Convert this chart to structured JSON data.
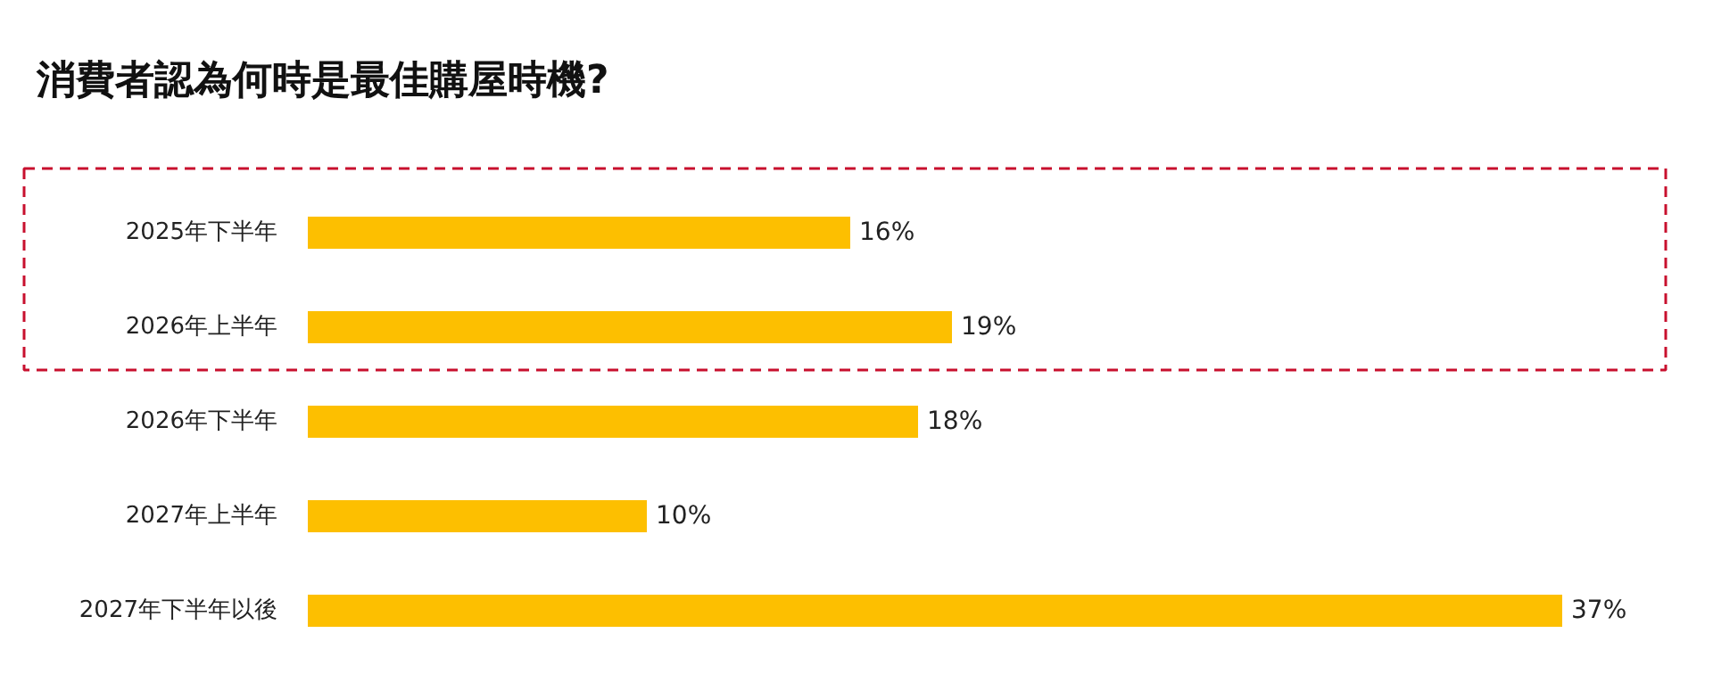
{
  "chart_data": {
    "type": "bar",
    "orientation": "horizontal",
    "title": "消費者認為何時是最佳購屋時機?",
    "categories": [
      "2025年下半年",
      "2026年上半年",
      "2026年下半年",
      "2027年上半年",
      "2027年下半年以後"
    ],
    "values": [
      16,
      19,
      18,
      10,
      37
    ],
    "value_labels": [
      "16%",
      "19%",
      "18%",
      "10%",
      "37%"
    ],
    "color": "#fdbf00"
  }
}
